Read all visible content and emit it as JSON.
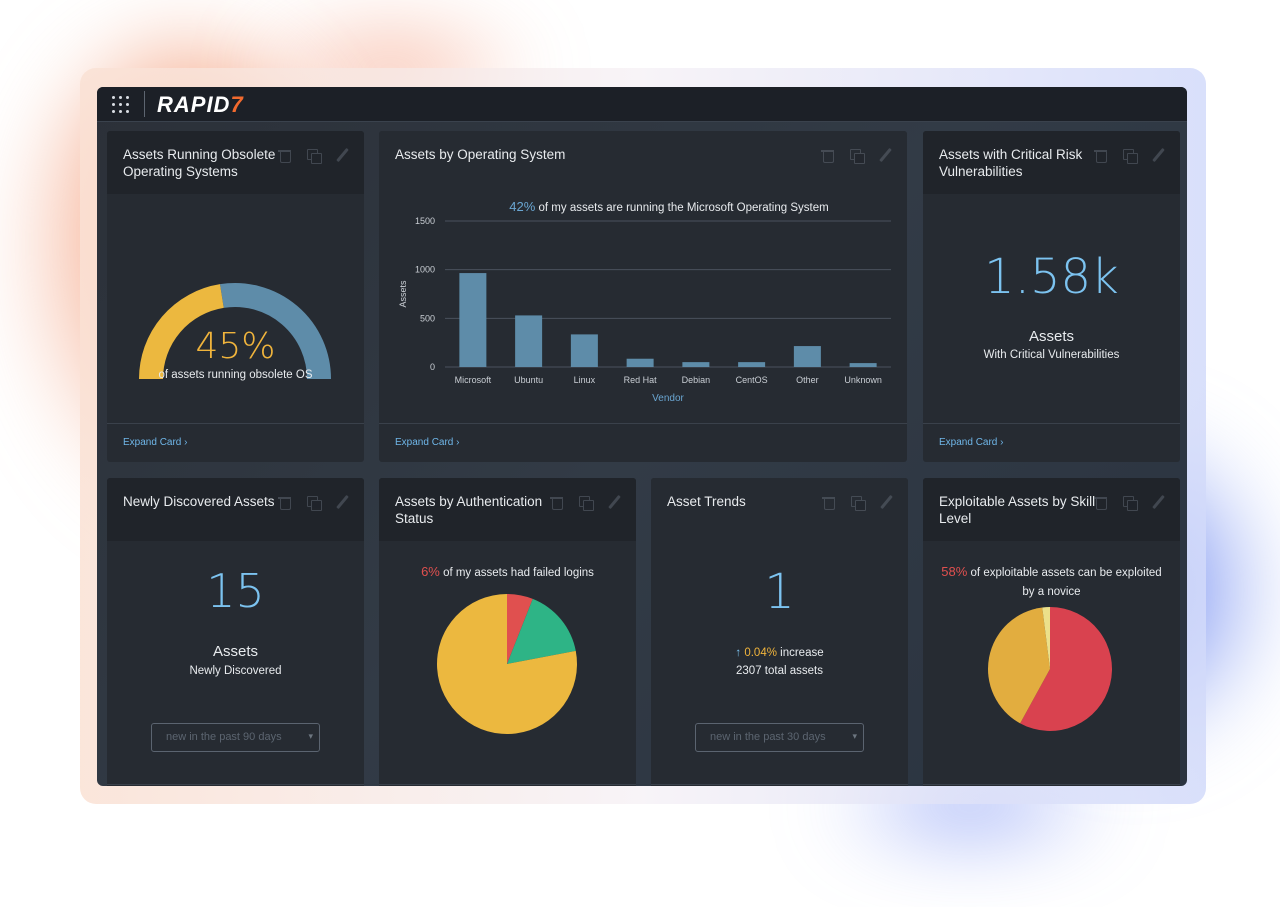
{
  "brand": {
    "logo_text": "RAPID",
    "logo_mark": "7",
    "menu_icon": "grid-icon"
  },
  "colors": {
    "accent_blue": "#7cc3f0",
    "amber": "#f0b43c",
    "steel_blue": "#5e8ca9",
    "red": "#e0504f",
    "green": "#2eb486",
    "brand_orange": "#f26a2e"
  },
  "cards": {
    "obsolete_os": {
      "title": "Assets Running Obsolete Operating Systems",
      "value": "45%",
      "caption": "of assets running obsolete OS",
      "gauge_fraction": 0.45,
      "expand": "Expand Card"
    },
    "os_chart": {
      "title": "Assets by Operating System",
      "pct": "42%",
      "headline": "of my assets are running the Microsoft Operating System",
      "expand": "Expand Card"
    },
    "critical_risk": {
      "title": "Assets with Critical Risk Vulnerabilities",
      "value": "1.58k",
      "label": "Assets",
      "sublabel": "With Critical Vulnerabilities",
      "expand": "Expand Card"
    },
    "newly_discovered": {
      "title": "Newly Discovered Assets",
      "value": "15",
      "label": "Assets",
      "sublabel": "Newly Discovered",
      "select_value": "new in the past 90 days"
    },
    "auth_status": {
      "title": "Assets by Authentication Status",
      "pct": "6%",
      "headline": "of my assets had failed logins"
    },
    "asset_trends": {
      "title": "Asset Trends",
      "value": "1",
      "increase_pct": "0.04%",
      "increase_word": "increase",
      "total": "2307 total assets",
      "select_value": "new in the past 30 days"
    },
    "exploitable": {
      "title": "Exploitable Assets by Skill Level",
      "pct": "58%",
      "headline": "of exploitable assets can be exploited by a novice"
    }
  },
  "chart_data": [
    {
      "type": "bar",
      "categories": [
        "Microsoft",
        "Ubuntu",
        "Linux",
        "Red Hat",
        "Debian",
        "CentOS",
        "Other",
        "Unknown"
      ],
      "values": [
        965,
        530,
        335,
        85,
        50,
        50,
        215,
        40
      ],
      "xlabel": "Vendor",
      "ylabel": "Assets",
      "ylim": [
        0,
        1500
      ],
      "yticks": [
        0,
        500,
        1000,
        1500
      ],
      "grid": true,
      "bar_color": "#5e8ca9"
    },
    {
      "type": "pie",
      "values": [
        0.06,
        0.16,
        0.78
      ],
      "colors": [
        "#e0504f",
        "#2eb486",
        "#ecb83f"
      ]
    },
    {
      "type": "pie",
      "values": [
        0.58,
        0.4,
        0.02
      ],
      "colors": [
        "#d9424f",
        "#e2ad3f",
        "#ece08a"
      ]
    }
  ]
}
